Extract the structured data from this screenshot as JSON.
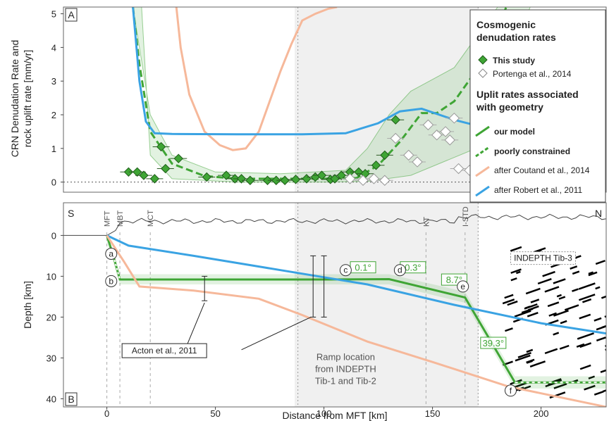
{
  "chart_data": [
    {
      "type": "scatter",
      "panel_label": "A",
      "ylabel_line1": "CRN Denudation Rate and",
      "ylabel_line2": "rock uplift rate [mm/yr]",
      "xlim": [
        -20,
        230
      ],
      "ylim": [
        -0.3,
        5.2
      ],
      "yticks": [
        "0",
        "1",
        "2",
        "3",
        "4",
        "5"
      ],
      "series": [
        {
          "name": "This study",
          "type": "scatter",
          "color": "#3fa535",
          "points": [
            [
              10,
              0.3
            ],
            [
              14,
              0.3
            ],
            [
              17,
              0.2
            ],
            [
              22,
              0.1
            ],
            [
              25,
              1.05
            ],
            [
              27,
              0.4
            ],
            [
              33,
              0.7
            ],
            [
              46,
              0.15
            ],
            [
              55,
              0.2
            ],
            [
              59,
              0.1
            ],
            [
              62,
              0.1
            ],
            [
              66,
              0.05
            ],
            [
              74,
              0.05
            ],
            [
              78,
              0.05
            ],
            [
              82,
              0.05
            ],
            [
              87,
              0.08
            ],
            [
              92,
              0.1
            ],
            [
              96,
              0.15
            ],
            [
              99,
              0.2
            ],
            [
              103,
              0.08
            ],
            [
              105,
              0.1
            ],
            [
              108,
              0.2
            ],
            [
              112,
              0.3
            ],
            [
              116,
              0.3
            ],
            [
              119,
              0.25
            ],
            [
              124,
              0.5
            ],
            [
              128,
              0.8
            ],
            [
              133,
              1.85
            ]
          ]
        },
        {
          "name": "Portenga et al., 2014",
          "type": "scatter",
          "color": "#9a9a9a",
          "points": [
            [
              112,
              0.1
            ],
            [
              118,
              0.05
            ],
            [
              123,
              0.1
            ],
            [
              128,
              0.05
            ],
            [
              133,
              1.3
            ],
            [
              139,
              0.8
            ],
            [
              143,
              0.6
            ],
            [
              148,
              1.7
            ],
            [
              152,
              1.4
            ],
            [
              156,
              1.5
            ],
            [
              158,
              1.25
            ],
            [
              160,
              1.9
            ],
            [
              162,
              0.4
            ],
            [
              167,
              0.35
            ]
          ]
        },
        {
          "name": "our model",
          "type": "line",
          "color": "#3fa535",
          "x": [
            12,
            15,
            20,
            30,
            45,
            60,
            80,
            100,
            115,
            125,
            135,
            145,
            152,
            160,
            170,
            180,
            184
          ],
          "y": [
            5.2,
            3.5,
            1.5,
            0.55,
            0.18,
            0.1,
            0.1,
            0.1,
            0.12,
            0.5,
            1.2,
            2.05,
            2.05,
            2.4,
            3.3,
            4.6,
            5.2
          ]
        },
        {
          "name": "after Coutand et al., 2014",
          "type": "line",
          "color": "#f6b89a",
          "x": [
            32,
            34,
            38,
            45,
            52,
            58,
            64,
            70,
            75,
            80,
            85,
            90,
            96,
            102,
            106
          ],
          "y": [
            5.2,
            4.0,
            2.6,
            1.5,
            1.1,
            0.95,
            1.0,
            1.5,
            2.4,
            3.3,
            4.1,
            4.8,
            5.0,
            5.15,
            5.2
          ]
        },
        {
          "name": "after Robert et al., 2011",
          "type": "line",
          "color": "#3aa3e3",
          "x": [
            12,
            15,
            18,
            22,
            30,
            60,
            90,
            110,
            125,
            135,
            145,
            160,
            175
          ],
          "y": [
            5.2,
            3.0,
            1.8,
            1.45,
            1.43,
            1.42,
            1.42,
            1.45,
            1.75,
            2.1,
            2.18,
            1.85,
            1.6
          ]
        }
      ]
    },
    {
      "type": "line",
      "panel_label": "B",
      "xlabel": "Distance from MFT [km]",
      "ylabel": "Depth [km]",
      "xlim": [
        -20,
        230
      ],
      "ylim": [
        42,
        -8
      ],
      "xticks": [
        "0",
        "50",
        "100",
        "150",
        "200"
      ],
      "yticks": [
        "0",
        "10",
        "20",
        "30",
        "40"
      ],
      "series": [
        {
          "name": "our model",
          "color": "#3fa535",
          "x": [
            0,
            3,
            6,
            20,
            60,
            100,
            130,
            165,
            188,
            230
          ],
          "y": [
            0,
            5,
            10.8,
            10.8,
            10.8,
            10.8,
            10.7,
            15.2,
            36,
            36
          ]
        },
        {
          "name": "after Robert et al., 2011",
          "color": "#3aa3e3",
          "x": [
            0,
            10,
            40,
            80,
            120,
            160,
            200,
            230
          ],
          "y": [
            0,
            2.5,
            5,
            8.5,
            12,
            17,
            21.5,
            24
          ]
        },
        {
          "name": "after Coutand et al., 2014",
          "color": "#f6b89a",
          "x": [
            0,
            8,
            15,
            40,
            70,
            90,
            120,
            150,
            185,
            230
          ],
          "y": [
            0,
            6.5,
            12.5,
            13.5,
            15.5,
            19.5,
            26,
            31,
            37,
            42
          ]
        }
      ],
      "annotations": {
        "S": "S",
        "N": "N",
        "angles": [
          "0.1°",
          "0.3°",
          "8.7°",
          "39.3°"
        ],
        "points": [
          "a",
          "b",
          "c",
          "d",
          "e",
          "f"
        ],
        "faults": [
          "MFT",
          "MBT",
          "MCT",
          "KT",
          "I-STD"
        ],
        "acton": "Acton et al., 2011",
        "indepth": "INDEPTH Tib-3",
        "ramp_line1": "Ramp location",
        "ramp_line2": "from INDEPTH",
        "ramp_line3": "Tib-1 and Tib-2"
      }
    }
  ],
  "legend": {
    "h1_line1": "Cosmogenic",
    "h1_line2": "denudation rates",
    "this_study": "This study",
    "portenga": "Portenga et al., 2014",
    "h2_line1": "Uplit rates associated",
    "h2_line2": "with geometry",
    "our_model": "our model",
    "poorly": "poorly constrained",
    "coutand": "after Coutand et al., 2014",
    "robert": "after Robert et al., 2011"
  },
  "colors": {
    "green": "#3fa535",
    "orange": "#f6b89a",
    "blue": "#3aa3e3",
    "gray": "#9a9a9a",
    "shade": "#f0f0f0"
  }
}
